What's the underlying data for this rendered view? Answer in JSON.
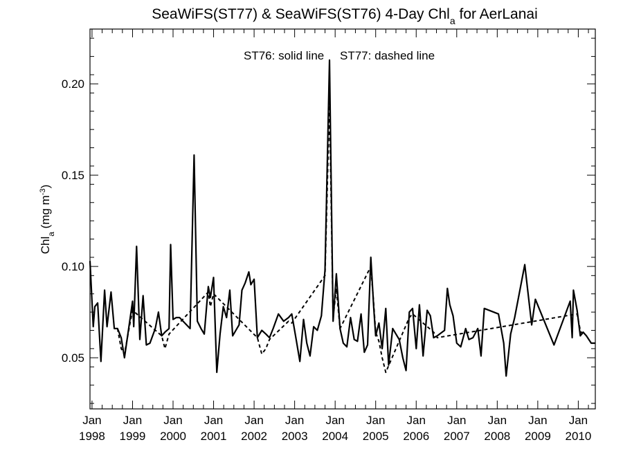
{
  "chart_data": {
    "type": "line",
    "title": {
      "prefix": "SeaWiFS(ST77) & SeaWiFS(ST76) 4-Day Chl",
      "subscript": "a",
      "suffix": " for AerLanai"
    },
    "ylabel": {
      "prefix": "Chl",
      "subscript": "a",
      "middle": " (mg m",
      "superscript": "-3",
      "suffix": ")"
    },
    "annotation": {
      "solid": "ST76: solid line",
      "dashed": "ST77: dashed line"
    },
    "ylim": [
      0.022,
      0.23
    ],
    "xlim": [
      1997.95,
      2010.42
    ],
    "x_ticks": [
      {
        "month": "Jan",
        "year": "1998",
        "x": 1998.0
      },
      {
        "month": "Jan",
        "year": "1999",
        "x": 1999.0
      },
      {
        "month": "Jan",
        "year": "2000",
        "x": 2000.0
      },
      {
        "month": "Jan",
        "year": "2001",
        "x": 2001.0
      },
      {
        "month": "Jan",
        "year": "2002",
        "x": 2002.0
      },
      {
        "month": "Jan",
        "year": "2003",
        "x": 2003.0
      },
      {
        "month": "Jan",
        "year": "2004",
        "x": 2004.0
      },
      {
        "month": "Jan",
        "year": "2005",
        "x": 2005.0
      },
      {
        "month": "Jan",
        "year": "2006",
        "x": 2006.0
      },
      {
        "month": "Jan",
        "year": "2007",
        "x": 2007.0
      },
      {
        "month": "Jan",
        "year": "2008",
        "x": 2008.0
      },
      {
        "month": "Jan",
        "year": "2009",
        "x": 2009.0
      },
      {
        "month": "Jan",
        "year": "2010",
        "x": 2010.0
      }
    ],
    "y_ticks": [
      {
        "label": "0.05",
        "value": 0.05
      },
      {
        "label": "0.10",
        "value": 0.1
      },
      {
        "label": "0.15",
        "value": 0.15
      },
      {
        "label": "0.20",
        "value": 0.2
      }
    ],
    "series": [
      {
        "name": "ST76",
        "style": "solid",
        "points": [
          [
            1997.95,
            0.103
          ],
          [
            1998.03,
            0.067
          ],
          [
            1998.07,
            0.078
          ],
          [
            1998.14,
            0.08
          ],
          [
            1998.22,
            0.048
          ],
          [
            1998.31,
            0.087
          ],
          [
            1998.37,
            0.067
          ],
          [
            1998.47,
            0.086
          ],
          [
            1998.55,
            0.066
          ],
          [
            1998.63,
            0.066
          ],
          [
            1998.72,
            0.061
          ],
          [
            1998.8,
            0.05
          ],
          [
            1998.93,
            0.07
          ],
          [
            1999.0,
            0.081
          ],
          [
            1999.03,
            0.067
          ],
          [
            1999.1,
            0.111
          ],
          [
            1999.18,
            0.06
          ],
          [
            1999.26,
            0.084
          ],
          [
            1999.34,
            0.057
          ],
          [
            1999.43,
            0.058
          ],
          [
            1999.56,
            0.066
          ],
          [
            1999.64,
            0.075
          ],
          [
            1999.72,
            0.062
          ],
          [
            1999.8,
            0.064
          ],
          [
            1999.9,
            0.066
          ],
          [
            1999.94,
            0.112
          ],
          [
            2000.0,
            0.071
          ],
          [
            2000.08,
            0.072
          ],
          [
            2000.16,
            0.072
          ],
          [
            2000.42,
            0.066
          ],
          [
            2000.52,
            0.161
          ],
          [
            2000.6,
            0.07
          ],
          [
            2000.69,
            0.066
          ],
          [
            2000.77,
            0.063
          ],
          [
            2000.87,
            0.089
          ],
          [
            2000.92,
            0.083
          ],
          [
            2001.0,
            0.094
          ],
          [
            2001.08,
            0.042
          ],
          [
            2001.16,
            0.063
          ],
          [
            2001.24,
            0.078
          ],
          [
            2001.32,
            0.072
          ],
          [
            2001.4,
            0.087
          ],
          [
            2001.47,
            0.062
          ],
          [
            2001.55,
            0.065
          ],
          [
            2001.63,
            0.068
          ],
          [
            2001.7,
            0.087
          ],
          [
            2001.78,
            0.091
          ],
          [
            2001.87,
            0.097
          ],
          [
            2001.92,
            0.09
          ],
          [
            2002.0,
            0.093
          ],
          [
            2002.08,
            0.061
          ],
          [
            2002.19,
            0.065
          ],
          [
            2002.29,
            0.063
          ],
          [
            2002.38,
            0.061
          ],
          [
            2002.47,
            0.066
          ],
          [
            2002.6,
            0.074
          ],
          [
            2002.73,
            0.07
          ],
          [
            2002.85,
            0.072
          ],
          [
            2002.93,
            0.074
          ],
          [
            2003.03,
            0.061
          ],
          [
            2003.13,
            0.048
          ],
          [
            2003.22,
            0.071
          ],
          [
            2003.3,
            0.058
          ],
          [
            2003.38,
            0.051
          ],
          [
            2003.47,
            0.067
          ],
          [
            2003.56,
            0.065
          ],
          [
            2003.66,
            0.073
          ],
          [
            2003.75,
            0.098
          ],
          [
            2003.86,
            0.213
          ],
          [
            2003.95,
            0.07
          ],
          [
            2004.03,
            0.096
          ],
          [
            2004.12,
            0.066
          ],
          [
            2004.2,
            0.058
          ],
          [
            2004.29,
            0.056
          ],
          [
            2004.38,
            0.072
          ],
          [
            2004.47,
            0.06
          ],
          [
            2004.55,
            0.059
          ],
          [
            2004.64,
            0.074
          ],
          [
            2004.72,
            0.053
          ],
          [
            2004.8,
            0.057
          ],
          [
            2004.88,
            0.105
          ],
          [
            2004.95,
            0.078
          ],
          [
            2005.0,
            0.062
          ],
          [
            2005.08,
            0.069
          ],
          [
            2005.16,
            0.055
          ],
          [
            2005.25,
            0.077
          ],
          [
            2005.32,
            0.046
          ],
          [
            2005.42,
            0.066
          ],
          [
            2005.5,
            0.063
          ],
          [
            2005.58,
            0.06
          ],
          [
            2005.67,
            0.05
          ],
          [
            2005.75,
            0.043
          ],
          [
            2005.83,
            0.075
          ],
          [
            2005.91,
            0.077
          ],
          [
            2006.0,
            0.055
          ],
          [
            2006.08,
            0.079
          ],
          [
            2006.17,
            0.051
          ],
          [
            2006.27,
            0.076
          ],
          [
            2006.35,
            0.073
          ],
          [
            2006.43,
            0.061
          ],
          [
            2006.52,
            0.062
          ],
          [
            2006.7,
            0.065
          ],
          [
            2006.77,
            0.088
          ],
          [
            2006.83,
            0.079
          ],
          [
            2006.91,
            0.073
          ],
          [
            2007.0,
            0.058
          ],
          [
            2007.1,
            0.056
          ],
          [
            2007.22,
            0.066
          ],
          [
            2007.3,
            0.06
          ],
          [
            2007.4,
            0.061
          ],
          [
            2007.52,
            0.066
          ],
          [
            2007.6,
            0.051
          ],
          [
            2007.68,
            0.077
          ],
          [
            2008.03,
            0.074
          ],
          [
            2008.16,
            0.058
          ],
          [
            2008.22,
            0.04
          ],
          [
            2008.33,
            0.063
          ],
          [
            2008.43,
            0.072
          ],
          [
            2008.68,
            0.101
          ],
          [
            2008.85,
            0.068
          ],
          [
            2008.94,
            0.082
          ],
          [
            2009.4,
            0.057
          ],
          [
            2009.8,
            0.081
          ],
          [
            2009.85,
            0.061
          ],
          [
            2009.88,
            0.087
          ],
          [
            2009.97,
            0.076
          ],
          [
            2010.05,
            0.062
          ],
          [
            2010.12,
            0.064
          ],
          [
            2010.2,
            0.062
          ],
          [
            2010.32,
            0.058
          ],
          [
            2010.42,
            0.058
          ]
        ]
      },
      {
        "name": "ST77",
        "style": "dashed",
        "points": [
          [
            1998.63,
            0.066
          ],
          [
            1998.72,
            0.055
          ],
          [
            1998.8,
            0.052
          ],
          [
            1998.93,
            0.068
          ],
          [
            1999.0,
            0.076
          ],
          [
            1999.72,
            0.062
          ],
          [
            1999.8,
            0.055
          ],
          [
            1999.9,
            0.063
          ],
          [
            2000.87,
            0.086
          ],
          [
            2000.92,
            0.078
          ],
          [
            2001.0,
            0.085
          ],
          [
            2002.08,
            0.061
          ],
          [
            2002.19,
            0.052
          ],
          [
            2002.29,
            0.055
          ],
          [
            2002.38,
            0.06
          ],
          [
            2002.85,
            0.07
          ],
          [
            2002.93,
            0.069
          ],
          [
            2003.75,
            0.095
          ],
          [
            2003.86,
            0.19
          ],
          [
            2003.95,
            0.072
          ],
          [
            2004.03,
            0.088
          ],
          [
            2004.12,
            0.066
          ],
          [
            2004.88,
            0.1
          ],
          [
            2004.95,
            0.08
          ],
          [
            2005.0,
            0.064
          ],
          [
            2005.08,
            0.059
          ],
          [
            2005.16,
            0.05
          ],
          [
            2005.25,
            0.042
          ],
          [
            2005.83,
            0.072
          ],
          [
            2005.91,
            0.074
          ],
          [
            2006.43,
            0.064
          ],
          [
            2006.52,
            0.061
          ],
          [
            2009.97,
            0.074
          ],
          [
            2010.05,
            0.065
          ],
          [
            2010.12,
            0.062
          ]
        ]
      }
    ]
  }
}
